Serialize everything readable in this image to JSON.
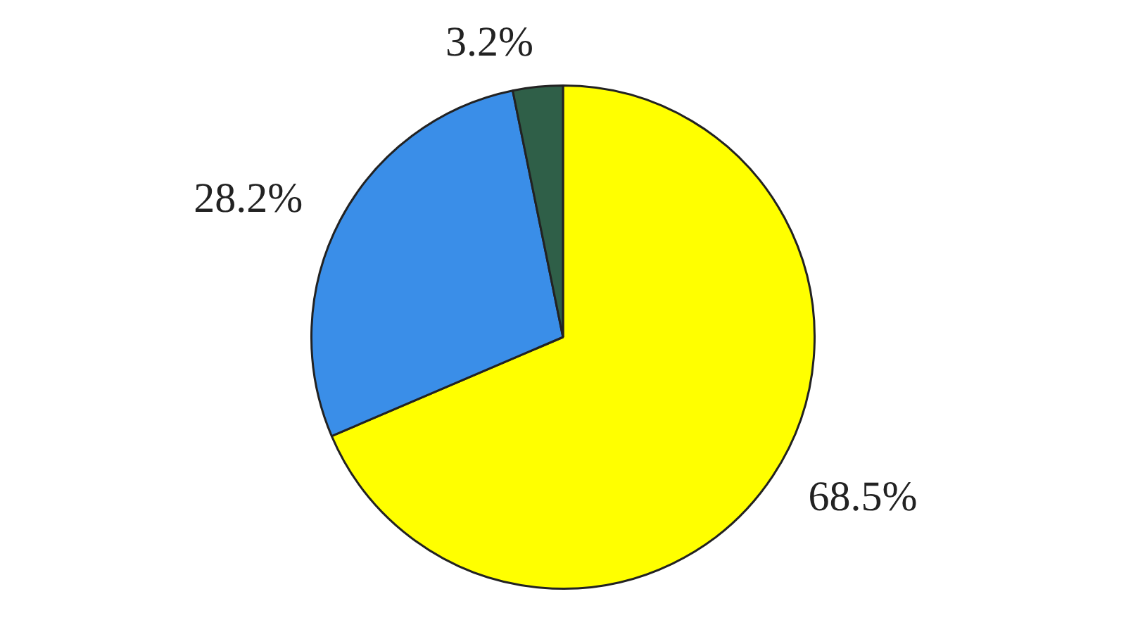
{
  "chart_data": {
    "type": "pie",
    "categories": [
      null,
      null,
      null
    ],
    "values": [
      68.5,
      28.2,
      3.2
    ],
    "colors": [
      "#ffff00",
      "#3a8ee8",
      "#2f5f48"
    ],
    "value_labels": [
      "68.5%",
      "28.2%",
      "3.2%"
    ],
    "legend": false
  }
}
